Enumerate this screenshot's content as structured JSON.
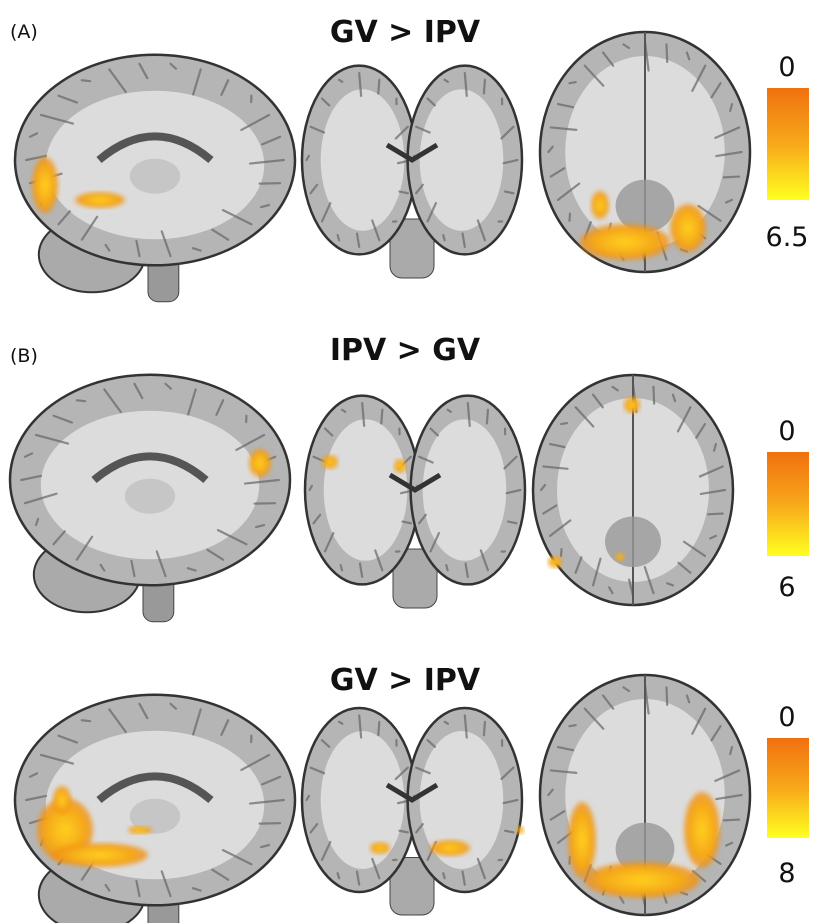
{
  "panels": [
    {
      "label": "(A)",
      "title": "GV > IPV",
      "colorbar": {
        "top": 0,
        "bottom": 6.5
      }
    },
    {
      "label": "(B)",
      "title": "IPV > GV",
      "colorbar": {
        "top": 0,
        "bottom": 6
      }
    },
    {
      "title": "GV > IPV",
      "colorbar": {
        "top": 0,
        "bottom": 8
      }
    }
  ]
}
